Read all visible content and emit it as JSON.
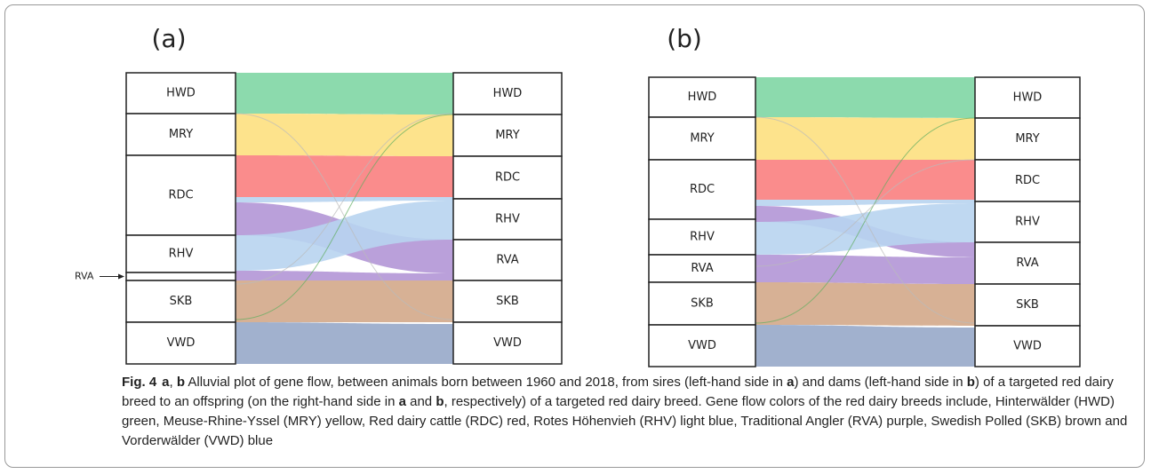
{
  "panels": [
    {
      "label": "(a)",
      "left": [
        "HWD",
        "MRY",
        "RDC",
        "RHV",
        "RVA",
        "SKB",
        "VWD"
      ],
      "right": [
        "HWD",
        "MRY",
        "RDC",
        "RHV",
        "RVA",
        "SKB",
        "VWD"
      ],
      "pointer": "RVA"
    },
    {
      "label": "(b)",
      "left": [
        "HWD",
        "MRY",
        "RDC",
        "RHV",
        "RVA",
        "SKB",
        "VWD"
      ],
      "right": [
        "HWD",
        "MRY",
        "RDC",
        "RHV",
        "RVA",
        "SKB",
        "VWD"
      ]
    }
  ],
  "caption": [
    "Fig. 4",
    "a",
    ", ",
    "b",
    " Alluvial plot of gene flow, between animals born between 1960 and 2018, from sires (left-hand side in ",
    "a",
    ") and dams (left-hand side in ",
    "b",
    ") of a targeted red dairy breed to an offspring (on the right-hand side in ",
    "a",
    " and ",
    "b",
    ", respectively) of a targeted red dairy breed. Gene flow colors of the red dairy breeds include, Hinterwälder (HWD) green, Meuse-Rhine-Yssel (MRY) yellow, Red dairy cattle (RDC) red, Rotes Höhenvieh (RHV) light blue, Traditional Angler (RVA) purple, Swedish Polled (SKB) brown and Vorderwälder (VWD) blue"
  ]
}
